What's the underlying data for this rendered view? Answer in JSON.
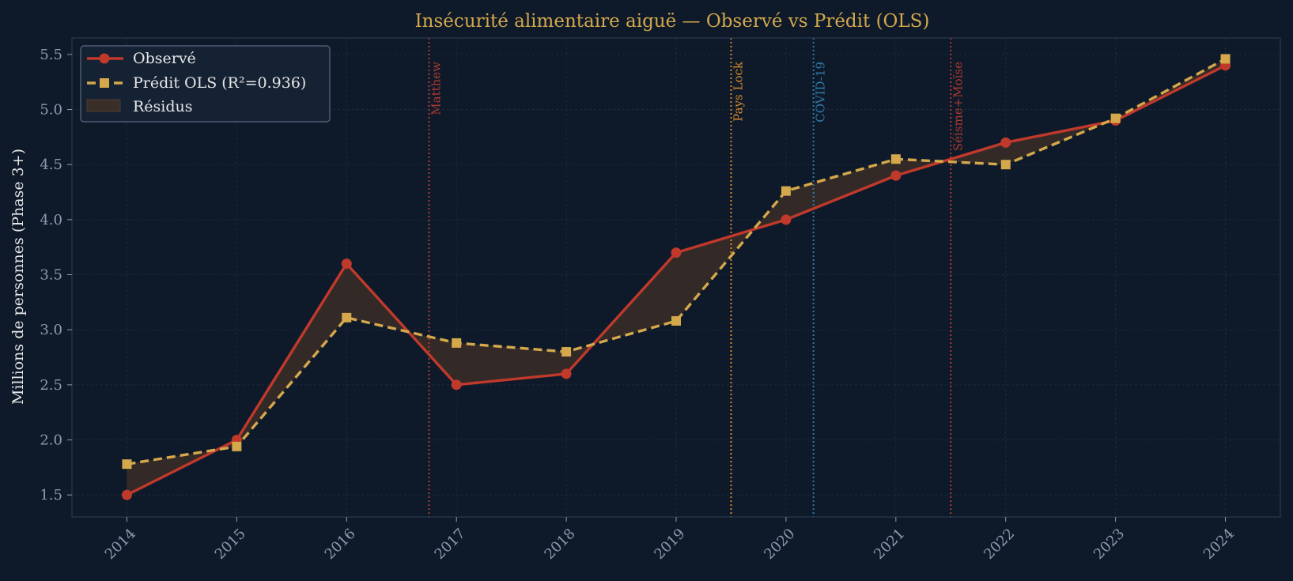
{
  "chart_data": {
    "type": "line",
    "title": "Insécurité alimentaire aiguë — Observé vs Prédit (OLS)",
    "xlabel": "",
    "ylabel": "Millions de personnes (Phase 3+)",
    "x": [
      "2014",
      "2015",
      "2016",
      "2017",
      "2018",
      "2019",
      "2020",
      "2021",
      "2022",
      "2023",
      "2024"
    ],
    "xlim": [
      2013.5,
      2024.5
    ],
    "ylim": [
      1.3,
      5.65
    ],
    "yticks": [
      "1.5",
      "2.0",
      "2.5",
      "3.0",
      "3.5",
      "4.0",
      "4.5",
      "5.0",
      "5.5"
    ],
    "grid": true,
    "legend_position": "top-left",
    "series": [
      {
        "name": "Observé",
        "style": "solid",
        "marker": "circle",
        "color": "#c0392b",
        "values": [
          1.5,
          2.0,
          3.6,
          2.5,
          2.6,
          3.7,
          4.0,
          4.4,
          4.7,
          4.9,
          5.4
        ]
      },
      {
        "name": "Prédit OLS (R²=0.936)",
        "style": "dashed",
        "marker": "square",
        "color": "#d4a84b",
        "values": [
          1.78,
          1.94,
          3.11,
          2.88,
          2.8,
          3.08,
          4.26,
          4.55,
          4.5,
          4.92,
          5.46
        ]
      }
    ],
    "residual_fill": {
      "name": "Résidus",
      "color": "#3a2e28"
    },
    "events": [
      {
        "label": "Matthew",
        "x": 2016.75,
        "color": "#b03a2e"
      },
      {
        "label": "Pays Lock",
        "x": 2019.5,
        "color": "#d6882a"
      },
      {
        "label": "COVID-19",
        "x": 2020.25,
        "color": "#2f7bab"
      },
      {
        "label": "Séisme+Moïse",
        "x": 2021.5,
        "color": "#b03a2e"
      }
    ],
    "colors": {
      "background": "#0e1a2a",
      "title": "#d4a84b",
      "axis_text": "#8a9bb0",
      "ylabel_text": "#e6e6e6",
      "grid": "#1c2a3c",
      "frame": "#2a3a4e"
    }
  }
}
